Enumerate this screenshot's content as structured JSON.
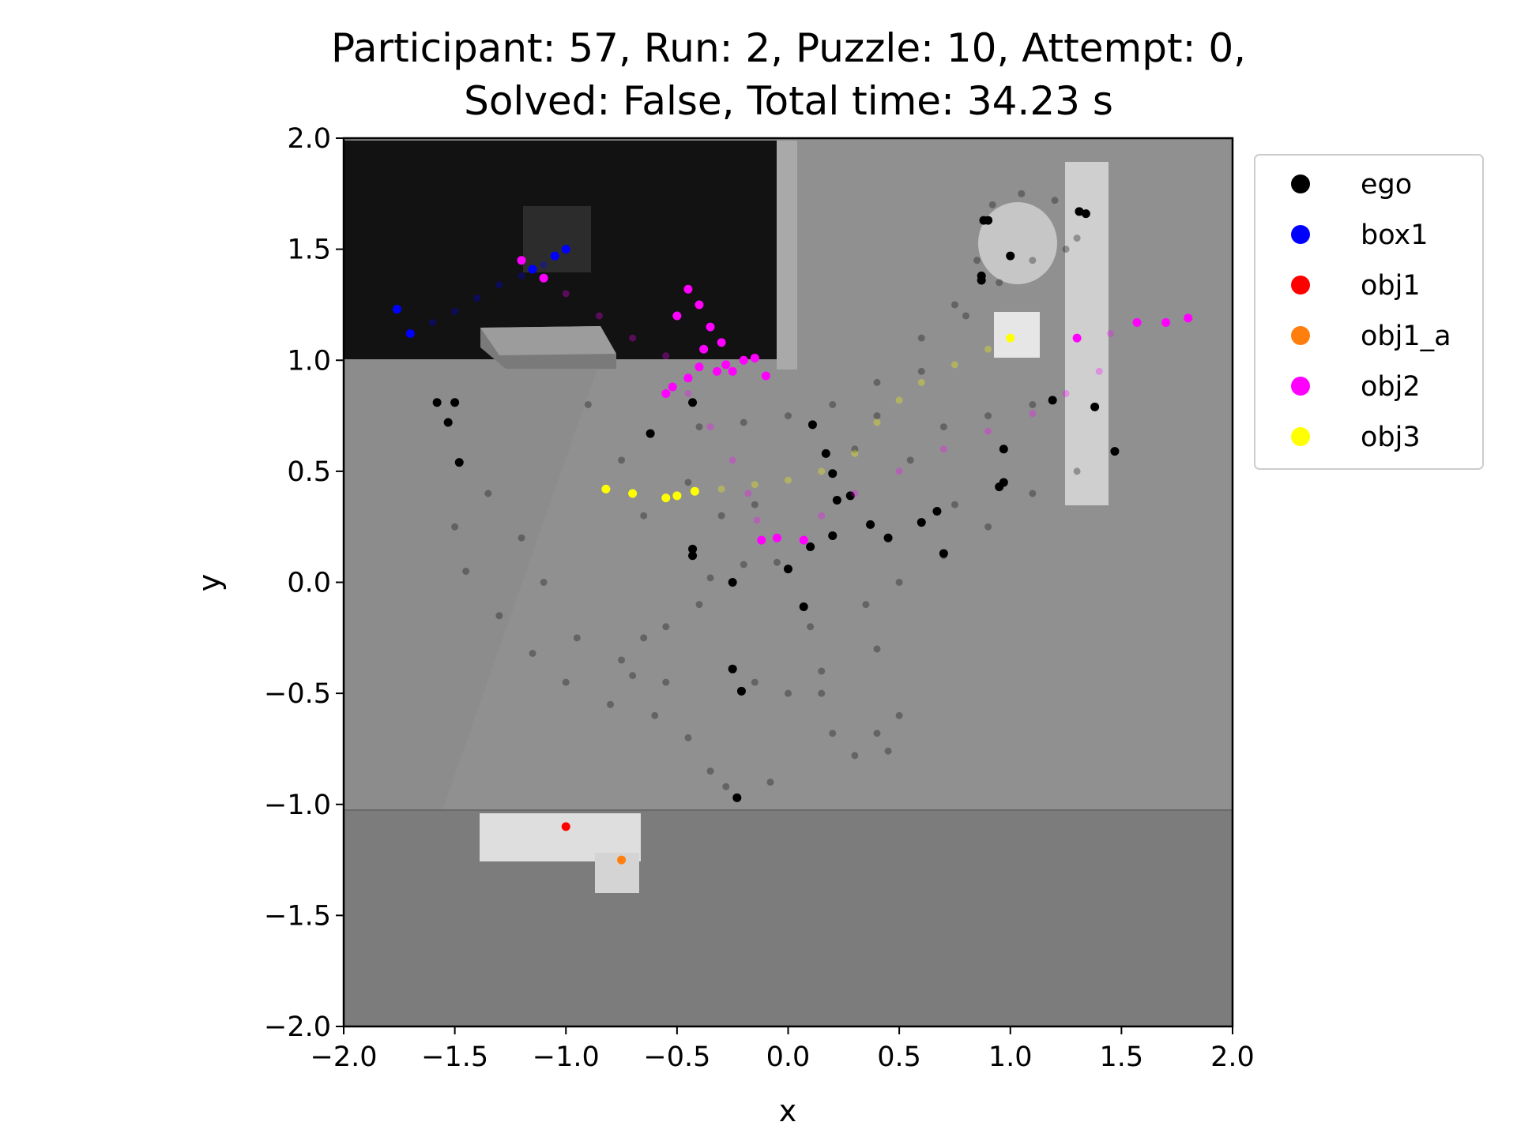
{
  "chart_data": {
    "type": "scatter",
    "title_line1": "Participant: 57, Run: 2, Puzzle: 10, Attempt: 0,",
    "title_line2": "Solved: False, Total time: 34.23 s",
    "xlabel": "x",
    "ylabel": "y",
    "xlim": [
      -2.0,
      2.0
    ],
    "ylim": [
      -2.0,
      2.0
    ],
    "xticks": [
      -2.0,
      -1.5,
      -1.0,
      -0.5,
      0.0,
      0.5,
      1.0,
      1.5,
      2.0
    ],
    "yticks": [
      -2.0,
      -1.5,
      -1.0,
      -0.5,
      0.0,
      0.5,
      1.0,
      1.5,
      2.0
    ],
    "xtick_labels": [
      "−2.0",
      "−1.5",
      "−1.0",
      "−0.5",
      "0.0",
      "0.5",
      "1.0",
      "1.5",
      "2.0"
    ],
    "ytick_labels": [
      "−2.0",
      "−1.5",
      "−1.0",
      "−0.5",
      "0.0",
      "0.5",
      "1.0",
      "1.5",
      "2.0"
    ],
    "grid": false,
    "legend_position": "outside-upper-right",
    "background": "top-down grayscale scene render",
    "series": [
      {
        "name": "ego",
        "color": "#000000",
        "points": [
          [
            -1.58,
            0.81
          ],
          [
            -1.53,
            0.72
          ],
          [
            -1.48,
            0.54
          ],
          [
            -1.5,
            0.81
          ],
          [
            -0.43,
            0.81
          ],
          [
            -0.62,
            0.67
          ],
          [
            -0.43,
            0.15
          ],
          [
            -0.43,
            0.12
          ],
          [
            -0.25,
            0.0
          ],
          [
            -0.25,
            -0.39
          ],
          [
            -0.21,
            -0.49
          ],
          [
            -0.23,
            -0.97
          ],
          [
            0.0,
            0.06
          ],
          [
            0.1,
            0.16
          ],
          [
            0.07,
            -0.11
          ],
          [
            0.11,
            0.71
          ],
          [
            0.17,
            0.58
          ],
          [
            0.2,
            0.49
          ],
          [
            0.22,
            0.37
          ],
          [
            0.28,
            0.39
          ],
          [
            0.2,
            0.21
          ],
          [
            0.37,
            0.26
          ],
          [
            0.45,
            0.2
          ],
          [
            0.6,
            0.27
          ],
          [
            0.67,
            0.32
          ],
          [
            0.87,
            1.36
          ],
          [
            0.87,
            1.38
          ],
          [
            0.88,
            1.63
          ],
          [
            0.9,
            1.63
          ],
          [
            1.0,
            1.47
          ],
          [
            1.31,
            1.67
          ],
          [
            1.34,
            1.66
          ],
          [
            1.19,
            0.82
          ],
          [
            1.38,
            0.79
          ],
          [
            1.47,
            0.59
          ],
          [
            0.95,
            0.43
          ],
          [
            0.97,
            0.45
          ],
          [
            0.97,
            0.6
          ],
          [
            0.7,
            0.13
          ]
        ],
        "trail_points": [
          [
            -1.5,
            0.25
          ],
          [
            -1.45,
            0.05
          ],
          [
            -1.3,
            -0.15
          ],
          [
            -1.15,
            -0.32
          ],
          [
            -1.0,
            -0.45
          ],
          [
            -0.8,
            -0.55
          ],
          [
            -0.6,
            -0.6
          ],
          [
            -0.45,
            -0.7
          ],
          [
            -0.35,
            -0.85
          ],
          [
            -0.28,
            -0.92
          ],
          [
            -1.35,
            0.4
          ],
          [
            -1.2,
            0.2
          ],
          [
            -1.1,
            0.0
          ],
          [
            -0.95,
            -0.25
          ],
          [
            -0.7,
            -0.42
          ],
          [
            -0.55,
            -0.45
          ],
          [
            -0.4,
            0.7
          ],
          [
            -0.2,
            0.72
          ],
          [
            0.0,
            0.75
          ],
          [
            0.2,
            0.8
          ],
          [
            0.4,
            0.9
          ],
          [
            0.6,
            1.1
          ],
          [
            0.75,
            1.25
          ],
          [
            0.85,
            1.45
          ],
          [
            0.92,
            1.7
          ],
          [
            1.05,
            1.75
          ],
          [
            1.2,
            1.72
          ],
          [
            1.3,
            1.55
          ],
          [
            1.25,
            1.5
          ],
          [
            1.1,
            1.45
          ],
          [
            0.95,
            1.35
          ],
          [
            0.8,
            1.2
          ],
          [
            0.6,
            0.95
          ],
          [
            0.4,
            0.75
          ],
          [
            0.3,
            0.6
          ],
          [
            -0.4,
            -0.1
          ],
          [
            -0.35,
            0.02
          ],
          [
            -0.2,
            0.08
          ],
          [
            -0.05,
            0.09
          ],
          [
            0.1,
            -0.2
          ],
          [
            0.15,
            -0.5
          ],
          [
            0.2,
            -0.68
          ],
          [
            0.4,
            -0.68
          ],
          [
            0.5,
            -0.6
          ],
          [
            0.4,
            -0.3
          ],
          [
            0.35,
            -0.1
          ],
          [
            0.5,
            0.0
          ],
          [
            0.7,
            0.12
          ],
          [
            0.9,
            0.25
          ],
          [
            1.1,
            0.4
          ],
          [
            1.3,
            0.5
          ],
          [
            0.75,
            0.35
          ],
          [
            0.55,
            0.55
          ],
          [
            0.7,
            0.7
          ],
          [
            0.9,
            0.75
          ],
          [
            1.1,
            0.8
          ],
          [
            0.3,
            -0.78
          ],
          [
            0.45,
            -0.76
          ],
          [
            -0.9,
            0.8
          ],
          [
            -0.75,
            0.55
          ],
          [
            -0.65,
            0.3
          ],
          [
            -0.45,
            0.45
          ],
          [
            -0.3,
            0.3
          ],
          [
            -0.15,
            0.35
          ],
          [
            -0.75,
            -0.35
          ],
          [
            -0.65,
            -0.25
          ],
          [
            -0.55,
            -0.2
          ],
          [
            -0.15,
            -0.45
          ],
          [
            0.0,
            -0.5
          ],
          [
            0.15,
            -0.4
          ],
          [
            -0.08,
            -0.9
          ]
        ]
      },
      {
        "name": "box1",
        "color": "#0000ff",
        "points": [
          [
            -1.76,
            1.23
          ],
          [
            -1.7,
            1.12
          ],
          [
            -1.15,
            1.41
          ],
          [
            -1.0,
            1.5
          ],
          [
            -1.05,
            1.47
          ]
        ],
        "trail_points": [
          [
            -1.6,
            1.17
          ],
          [
            -1.5,
            1.22
          ],
          [
            -1.4,
            1.28
          ],
          [
            -1.3,
            1.34
          ],
          [
            -1.2,
            1.38
          ],
          [
            -1.1,
            1.43
          ]
        ]
      },
      {
        "name": "obj1",
        "color": "#ff0000",
        "points": [
          [
            -1.0,
            -1.1
          ]
        ],
        "trail_points": []
      },
      {
        "name": "obj1_a",
        "color": "#ff7f0e",
        "points": [
          [
            -0.75,
            -1.25
          ]
        ],
        "trail_points": []
      },
      {
        "name": "obj2",
        "color": "#ff00ff",
        "points": [
          [
            -1.2,
            1.45
          ],
          [
            -1.1,
            1.37
          ],
          [
            -0.45,
            1.32
          ],
          [
            -0.5,
            1.2
          ],
          [
            -0.4,
            1.25
          ],
          [
            -0.35,
            1.15
          ],
          [
            -0.38,
            1.05
          ],
          [
            -0.3,
            1.08
          ],
          [
            -0.28,
            0.98
          ],
          [
            -0.4,
            0.97
          ],
          [
            -0.45,
            0.92
          ],
          [
            -0.52,
            0.88
          ],
          [
            -0.55,
            0.85
          ],
          [
            -0.32,
            0.95
          ],
          [
            -0.2,
            1.0
          ],
          [
            -0.15,
            1.01
          ],
          [
            -0.25,
            0.95
          ],
          [
            -0.1,
            0.93
          ],
          [
            -0.12,
            0.19
          ],
          [
            -0.05,
            0.2
          ],
          [
            0.07,
            0.19
          ],
          [
            1.3,
            1.1
          ],
          [
            1.57,
            1.17
          ],
          [
            1.7,
            1.17
          ],
          [
            1.8,
            1.19
          ]
        ],
        "trail_points": [
          [
            -1.0,
            1.3
          ],
          [
            -0.85,
            1.2
          ],
          [
            -0.7,
            1.1
          ],
          [
            -0.55,
            1.02
          ],
          [
            -0.45,
            0.85
          ],
          [
            -0.35,
            0.7
          ],
          [
            -0.25,
            0.55
          ],
          [
            -0.18,
            0.4
          ],
          [
            -0.14,
            0.28
          ],
          [
            0.15,
            0.3
          ],
          [
            0.3,
            0.4
          ],
          [
            0.5,
            0.5
          ],
          [
            0.7,
            0.6
          ],
          [
            0.9,
            0.68
          ],
          [
            1.1,
            0.76
          ],
          [
            1.25,
            0.85
          ],
          [
            1.4,
            0.95
          ],
          [
            1.45,
            1.12
          ]
        ]
      },
      {
        "name": "obj3",
        "color": "#ffff00",
        "points": [
          [
            -0.82,
            0.42
          ],
          [
            -0.7,
            0.4
          ],
          [
            -0.55,
            0.38
          ],
          [
            -0.5,
            0.39
          ],
          [
            -0.42,
            0.41
          ],
          [
            1.0,
            1.1
          ]
        ],
        "trail_points": [
          [
            -0.3,
            0.42
          ],
          [
            -0.15,
            0.44
          ],
          [
            0.0,
            0.46
          ],
          [
            0.15,
            0.5
          ],
          [
            0.3,
            0.58
          ],
          [
            0.4,
            0.72
          ],
          [
            0.5,
            0.82
          ],
          [
            0.6,
            0.9
          ],
          [
            0.75,
            0.98
          ],
          [
            0.9,
            1.05
          ]
        ]
      }
    ]
  }
}
